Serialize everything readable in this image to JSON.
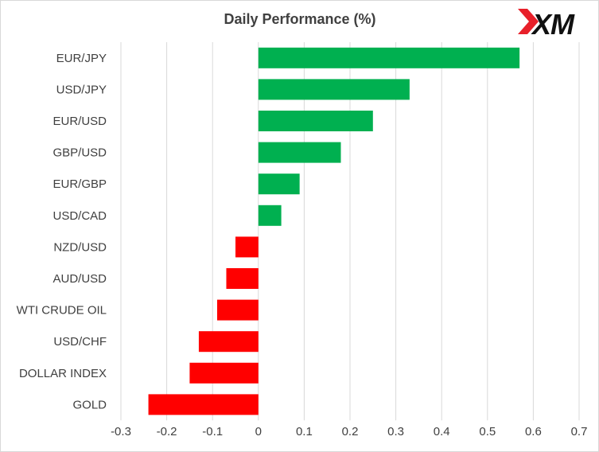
{
  "chart_data": {
    "type": "bar",
    "orientation": "horizontal",
    "title": "Daily Performance  (%)",
    "categories": [
      "EUR/JPY",
      "USD/JPY",
      "EUR/USD",
      "GBP/USD",
      "EUR/GBP",
      "USD/CAD",
      "NZD/USD",
      "AUD/USD",
      "WTI CRUDE OIL",
      "USD/CHF",
      "DOLLAR INDEX",
      "GOLD"
    ],
    "values": [
      0.57,
      0.33,
      0.25,
      0.18,
      0.09,
      0.05,
      -0.05,
      -0.07,
      -0.09,
      -0.13,
      -0.15,
      -0.24
    ],
    "xlim": [
      -0.3,
      0.7
    ],
    "xticks": [
      "-0.3",
      "-0.2",
      "-0.1",
      "0",
      "0.1",
      "0.2",
      "0.3",
      "0.4",
      "0.5",
      "0.6",
      "0.7"
    ],
    "grid": "vertical",
    "colors": {
      "positive": "#00b050",
      "negative": "#ff0000",
      "grid": "#d9d9d9",
      "text": "#404040"
    }
  },
  "logo": {
    "text": "XM",
    "accent": "#e8202a"
  }
}
